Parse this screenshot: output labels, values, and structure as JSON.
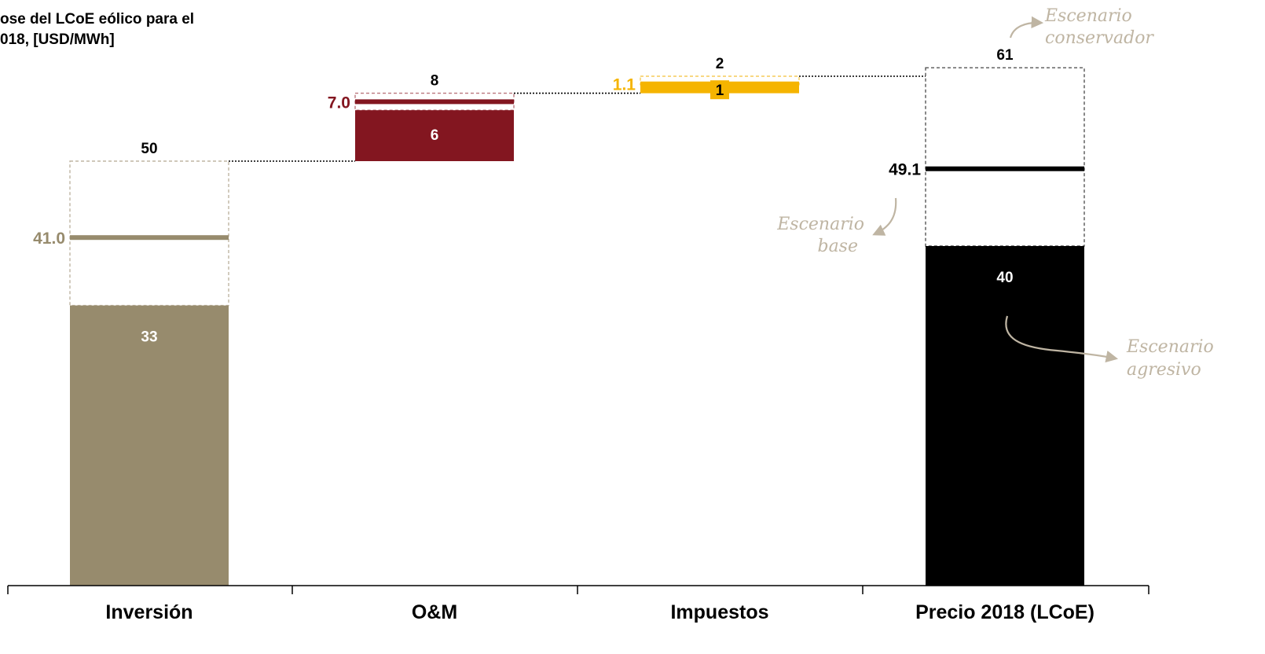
{
  "chart_data": {
    "type": "bar",
    "title_lines": [
      "ose del LCoE eólico para el",
      "018, [USD/MWh]"
    ],
    "categories": [
      "Inversión",
      "O&M",
      "Impuestos",
      "Precio 2018 (LCoE)"
    ],
    "ylim": [
      0,
      68
    ],
    "grid": false,
    "colors": {
      "inversion": "#978B6D",
      "om": "#831620",
      "impuestos": "#F5B400",
      "total": "#000000",
      "annotation": "#BFB5A3"
    },
    "series": [
      {
        "category": "Inversión",
        "base": 0,
        "aggressive": 33,
        "base_scenario": 41.0,
        "conservative": 50,
        "label_aggressive": "33",
        "label_base": "41.0",
        "label_conservative": "50",
        "color": "#978B6D"
      },
      {
        "category": "O&M",
        "base": 50,
        "aggressive": 6,
        "base_scenario": 7.0,
        "conservative": 8,
        "label_aggressive": "6",
        "label_base": "7.0",
        "label_conservative": "8",
        "color": "#831620"
      },
      {
        "category": "Impuestos",
        "base": 58,
        "aggressive": 1,
        "base_scenario": 1.1,
        "conservative": 2,
        "label_aggressive": "1",
        "label_base": "1.1",
        "label_conservative": "2",
        "color": "#F5B400"
      },
      {
        "category": "Precio 2018 (LCoE)",
        "base": 0,
        "aggressive": 40,
        "base_scenario": 49.1,
        "conservative": 61,
        "label_aggressive": "40",
        "label_base": "49.1",
        "label_conservative": "61",
        "color": "#000000"
      }
    ],
    "annotations": {
      "conservador": [
        "Escenario",
        "conservador"
      ],
      "base": [
        "Escenario",
        "base"
      ],
      "agresivo": [
        "Escenario",
        "agresivo"
      ]
    }
  }
}
